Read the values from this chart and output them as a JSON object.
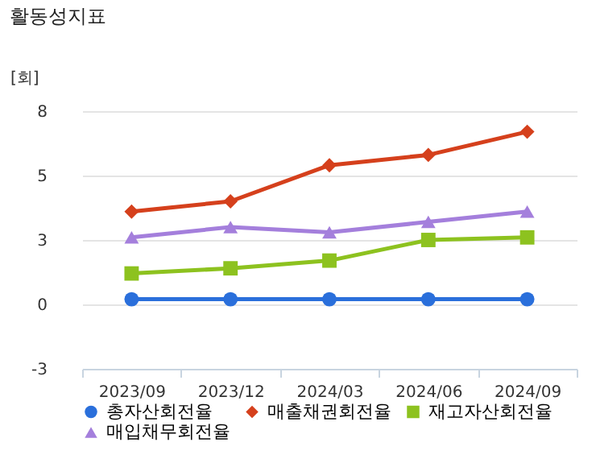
{
  "chart_data": {
    "type": "line",
    "title": "활동성지표",
    "ylabel": "[회]",
    "categories": [
      "2023/09",
      "2023/12",
      "2024/03",
      "2024/06",
      "2024/09"
    ],
    "series": [
      {
        "name": "총자산회전율",
        "color": "#2a6fdb",
        "marker": "circle",
        "values": [
          0.2,
          0.2,
          0.2,
          0.2,
          0.2
        ]
      },
      {
        "name": "매출채권회전율",
        "color": "#d5401c",
        "marker": "diamond",
        "values": [
          3.6,
          4.0,
          5.4,
          5.8,
          6.7
        ]
      },
      {
        "name": "재고자산회전율",
        "color": "#8dc21f",
        "marker": "square",
        "values": [
          1.2,
          1.4,
          1.7,
          2.5,
          2.6
        ]
      },
      {
        "name": "매입채무회전율",
        "color": "#a47fdc",
        "marker": "triangle",
        "values": [
          2.6,
          3.0,
          2.8,
          3.2,
          3.6
        ]
      }
    ],
    "ylim": [
      -2.5,
      7.5
    ],
    "yticks": [
      {
        "value": -2.5,
        "label": "-3"
      },
      {
        "value": 0,
        "label": "0"
      },
      {
        "value": 2.5,
        "label": "3"
      },
      {
        "value": 5,
        "label": "5"
      },
      {
        "value": 7.5,
        "label": "8"
      }
    ],
    "grid": "y",
    "legend": "bottom"
  }
}
